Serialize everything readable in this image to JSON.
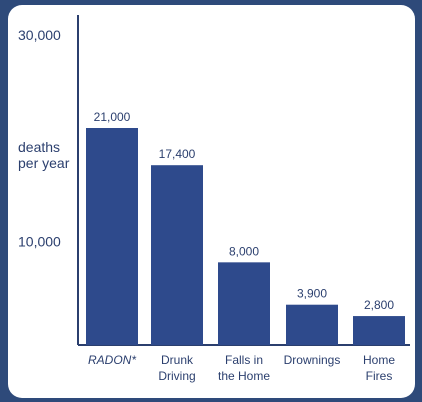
{
  "chart_data": {
    "type": "bar",
    "title": "",
    "xlabel": "",
    "ylabel": "deaths per year",
    "ylabel_lines": [
      "deaths",
      "per year"
    ],
    "ylim": [
      0,
      30000
    ],
    "yticks": [
      {
        "value": 30000,
        "label": "30,000"
      },
      {
        "value": 10000,
        "label": "10,000"
      }
    ],
    "categories": [
      "RADON*",
      "Drunk Driving",
      "Falls in the Home",
      "Drownings",
      "Home Fires"
    ],
    "category_lines": [
      [
        "RADON*"
      ],
      [
        "Drunk",
        "Driving"
      ],
      [
        "Falls in",
        "the Home"
      ],
      [
        "Drownings"
      ],
      [
        "Home",
        "Fires"
      ]
    ],
    "values": [
      21000,
      17400,
      8000,
      3900,
      2800
    ],
    "value_labels": [
      "21,000",
      "17,400",
      "8,000",
      "3,900",
      "2,800"
    ],
    "emphasized_category": "RADON*",
    "bar_color": "#2e4a8c",
    "text_color": "#2b3f6e",
    "axis_color": "#2b3f6e",
    "background": "#ffffff",
    "frame_color": "#2e4a7a",
    "grid": false,
    "legend": "none"
  }
}
